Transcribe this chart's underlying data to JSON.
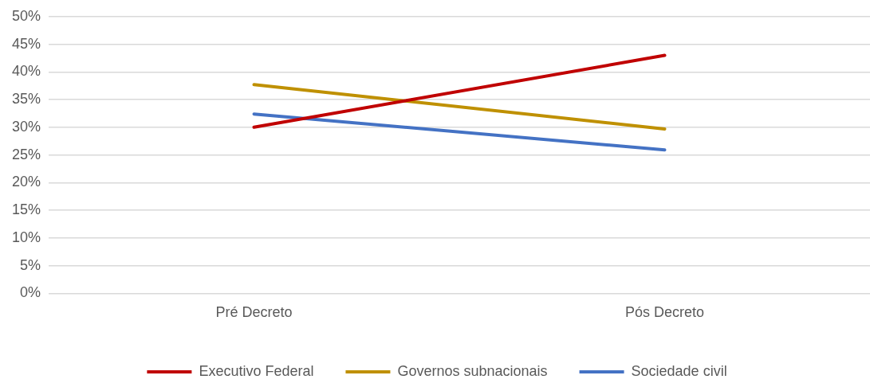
{
  "chart_data": {
    "type": "line",
    "categories": [
      "Pré Decreto",
      "Pós Decreto"
    ],
    "series": [
      {
        "name": "Executivo Federal",
        "color": "#c00000",
        "values": [
          30.0,
          43.0
        ]
      },
      {
        "name": "Governos subnacionais",
        "color": "#bf9000",
        "values": [
          37.7,
          29.7
        ]
      },
      {
        "name": "Sociedade civil",
        "color": "#4472c4",
        "values": [
          32.4,
          25.9
        ]
      }
    ],
    "ylim": [
      0,
      50
    ],
    "yticks": [
      {
        "value": 0,
        "label": "0%"
      },
      {
        "value": 5,
        "label": "5%"
      },
      {
        "value": 10,
        "label": "10%"
      },
      {
        "value": 15,
        "label": "15%"
      },
      {
        "value": 20,
        "label": "20%"
      },
      {
        "value": 25,
        "label": "25%"
      },
      {
        "value": 30,
        "label": "30%"
      },
      {
        "value": 35,
        "label": "35%"
      },
      {
        "value": 40,
        "label": "40%"
      },
      {
        "value": 45,
        "label": "45%"
      },
      {
        "value": 50,
        "label": "50%"
      }
    ],
    "grid": "y",
    "legend": "bottom",
    "marker": "none",
    "line_style": "solid"
  }
}
